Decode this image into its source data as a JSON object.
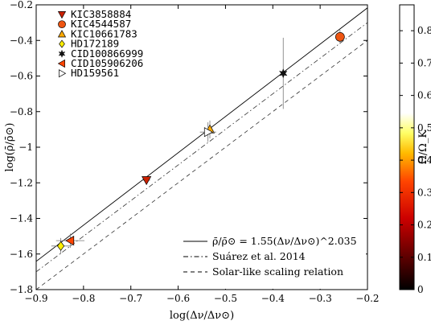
{
  "chart_data": {
    "type": "scatter",
    "xlabel": "log(Δν/Δν⊙)",
    "ylabel": "log(ρ̄/ρ̄⊙)",
    "xlim": [
      -0.9,
      -0.2
    ],
    "ylim": [
      -1.8,
      -0.2
    ],
    "xticks": [
      -0.9,
      -0.8,
      -0.7,
      -0.6,
      -0.5,
      -0.4,
      -0.3,
      -0.2
    ],
    "xtick_labels": [
      "−0.9",
      "−0.8",
      "−0.7",
      "−0.6",
      "−0.5",
      "−0.4",
      "−0.3",
      "−0.2"
    ],
    "yticks": [
      -1.8,
      -1.6,
      -1.4,
      -1.2,
      -1.0,
      -0.8,
      -0.6,
      -0.4,
      -0.2
    ],
    "ytick_labels": [
      "−1.8",
      "−1.6",
      "−1.4",
      "−1.2",
      "−1",
      "−0.8",
      "−0.6",
      "−0.4",
      "−0.2"
    ],
    "colorbar": {
      "label": "Ω/Ω_K",
      "range": [
        0,
        0.88
      ],
      "ticks": [
        0,
        0.1,
        0.2,
        0.3,
        0.4,
        0.5,
        0.6,
        0.7,
        0.8
      ],
      "tick_labels": [
        "0",
        "0.1",
        "0.2",
        "0.3",
        "0.4",
        "0.5",
        "0.6",
        "0.7",
        "0.8"
      ],
      "colormap": "hot"
    },
    "stars": [
      {
        "name": "KIC3858884",
        "marker": "triangle-down",
        "color": "#cc2200",
        "x": -0.667,
        "y": -1.185,
        "xerr": 0.008,
        "yerr": 0.02
      },
      {
        "name": "KIC4544587",
        "marker": "circle",
        "color": "#ee5511",
        "x": -0.258,
        "y": -0.38,
        "xerr": 0.004,
        "yerr": 0.04
      },
      {
        "name": "KIC10661783",
        "marker": "triangle-up",
        "color": "#ffaa00",
        "x": -0.533,
        "y": -0.9,
        "xerr": 0.004,
        "yerr": 0.05
      },
      {
        "name": "HD172189",
        "marker": "diamond",
        "color": "#ffee00",
        "x": -0.848,
        "y": -1.555,
        "xerr": 0.02,
        "yerr": 0.045
      },
      {
        "name": "CID100866999",
        "marker": "star",
        "color": "#111111",
        "x": -0.378,
        "y": -0.585,
        "xerr": 0.005,
        "yerr": 0.2
      },
      {
        "name": "CID105906206",
        "marker": "triangle-left",
        "color": "#ff4400",
        "x": -0.828,
        "y": -1.525,
        "xerr": 0.03,
        "yerr": 0.04
      },
      {
        "name": "HD159561",
        "marker": "triangle-right",
        "color": "#ffffff",
        "x": -0.537,
        "y": -0.915,
        "xerr": 0.017,
        "yerr": 0.055
      }
    ],
    "lines": [
      {
        "label": "ρ̄/ρ̄⊙ = 1.55(Δν/Δν⊙)^2.035",
        "style": "solid",
        "slope": 2.035,
        "intercept": 0.19
      },
      {
        "label": "Suárez et al. 2014",
        "style": "dashdot",
        "slope": 2.0,
        "intercept": 0.1
      },
      {
        "label": "Solar-like scaling relation",
        "style": "dashed",
        "slope": 2.0,
        "intercept": 0.0
      }
    ],
    "legend_stars_position": "top-left",
    "legend_lines_position": "bottom-right"
  }
}
